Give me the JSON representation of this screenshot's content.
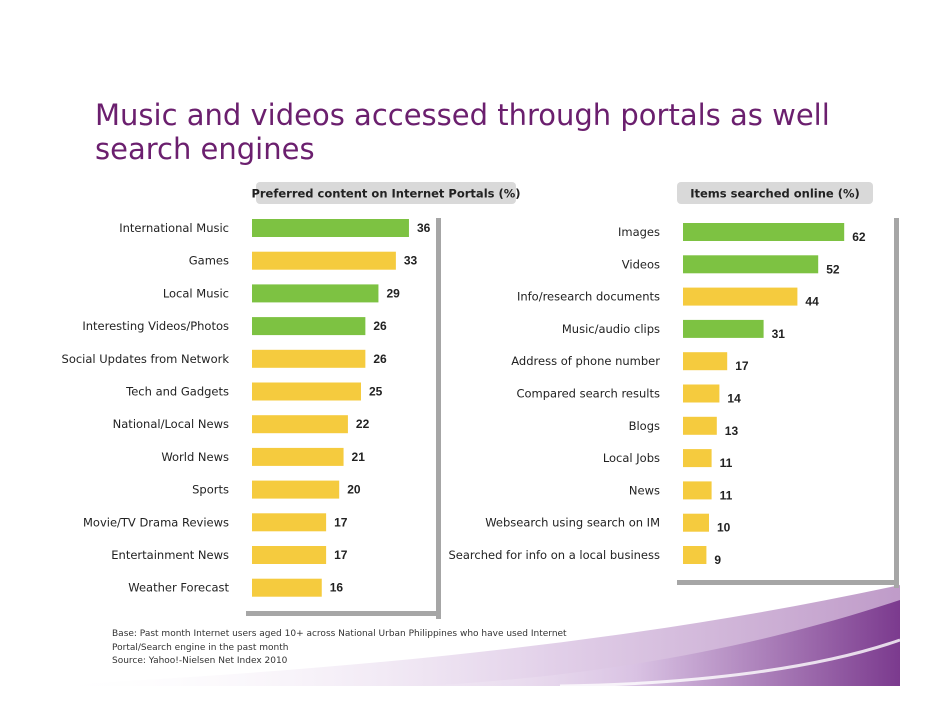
{
  "title": "Music and videos accessed through portals as well search engines",
  "footnote": {
    "line1": "Base: Past month Internet users aged 10+ across National Urban Philippines who have used Internet",
    "line2": "Portal/Search engine in the past month",
    "line3": "Source: Yahoo!-Nielsen Net Index 2010"
  },
  "colors": {
    "title": "#6b1f6e",
    "green_bar": "#7dc242",
    "yellow_bar": "#f5cb3e",
    "header_pill": "#d9d9d9",
    "panel_shadow": "#a6a6a6",
    "swoosh": "#7b3a8e"
  },
  "chart_data": [
    {
      "type": "bar",
      "orientation": "horizontal",
      "title": "Preferred content on Internet Portals (%)",
      "categories": [
        "International Music",
        "Games",
        "Local Music",
        "Interesting Videos/Photos",
        "Social Updates from Network",
        "Tech and Gadgets",
        "National/Local News",
        "World News",
        "Sports",
        "Movie/TV Drama Reviews",
        "Entertainment News",
        "Weather Forecast"
      ],
      "values": [
        36,
        33,
        29,
        26,
        26,
        25,
        22,
        21,
        20,
        17,
        17,
        16
      ],
      "bar_colors": [
        "green",
        "yellow",
        "green",
        "green",
        "yellow",
        "yellow",
        "yellow",
        "yellow",
        "yellow",
        "yellow",
        "yellow",
        "yellow"
      ],
      "data_labels": true
    },
    {
      "type": "bar",
      "orientation": "horizontal",
      "title": "Items searched online (%)",
      "categories": [
        "Images",
        "Videos",
        "Info/research documents",
        "Music/audio clips",
        "Address of phone number",
        "Compared search results",
        "Blogs",
        "Local Jobs",
        "News",
        "Websearch using search on IM",
        "Searched for info on a local business"
      ],
      "values": [
        62,
        52,
        44,
        31,
        17,
        14,
        13,
        11,
        11,
        10,
        9
      ],
      "bar_colors": [
        "green",
        "green",
        "yellow",
        "green",
        "yellow",
        "yellow",
        "yellow",
        "yellow",
        "yellow",
        "yellow",
        "yellow"
      ],
      "data_labels": true
    }
  ]
}
